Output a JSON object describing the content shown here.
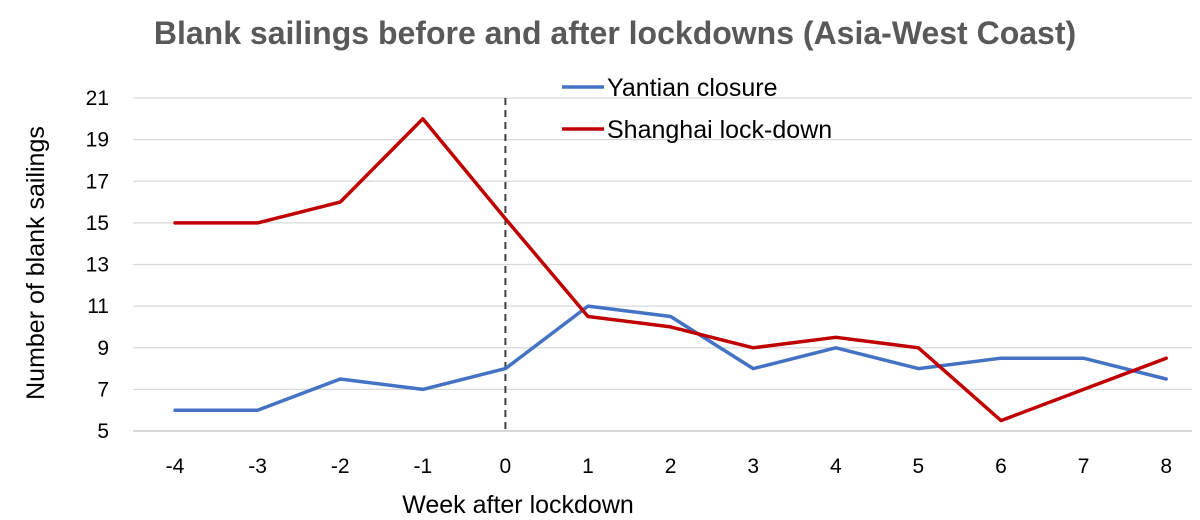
{
  "chart_data": {
    "type": "line",
    "title": "Blank sailings before and after lockdowns (Asia-West Coast)",
    "xlabel": "Week after lockdown",
    "ylabel": "Number of blank sailings",
    "x": [
      -4,
      -3,
      -2,
      -1,
      0,
      1,
      2,
      3,
      4,
      5,
      6,
      7,
      8
    ],
    "x_tick_labels": [
      "-4",
      "-3",
      "-2",
      "-1",
      "0",
      "1",
      "2",
      "3",
      "4",
      "5",
      "6",
      "7",
      "8"
    ],
    "ylim": [
      5,
      21
    ],
    "y_ticks": [
      5,
      7,
      9,
      11,
      13,
      15,
      17,
      19,
      21
    ],
    "grid": "horizontal",
    "legend_position": "top",
    "reference_line": {
      "x": 0,
      "style": "dashed"
    },
    "series": [
      {
        "name": "Yantian closure",
        "color": "#4472C4",
        "values": [
          6,
          6,
          7.5,
          7,
          8,
          11,
          10.5,
          8,
          9,
          8,
          8.5,
          8.5,
          7.5
        ]
      },
      {
        "name": "Shanghai lock-down",
        "color": "#C00000",
        "values": [
          15,
          15,
          16,
          20,
          15.2,
          10.5,
          10,
          9,
          9.5,
          9,
          5.5,
          7,
          8.5
        ]
      }
    ]
  }
}
